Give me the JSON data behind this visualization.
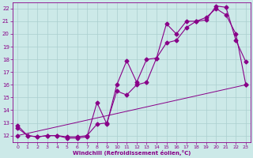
{
  "xlabel": "Windchill (Refroidissement éolien,°C)",
  "bg_color": "#cce9e8",
  "line_color": "#880088",
  "grid_color": "#aacfcf",
  "xlim": [
    -0.5,
    23.5
  ],
  "ylim": [
    11.5,
    22.5
  ],
  "xticks": [
    0,
    1,
    2,
    3,
    4,
    5,
    6,
    7,
    8,
    9,
    10,
    11,
    12,
    13,
    14,
    15,
    16,
    17,
    18,
    19,
    20,
    21,
    22,
    23
  ],
  "yticks": [
    12,
    13,
    14,
    15,
    16,
    17,
    18,
    19,
    20,
    21,
    22
  ],
  "line1_x": [
    0,
    1,
    2,
    3,
    4,
    5,
    6,
    7,
    8,
    9,
    10,
    11,
    12,
    13,
    14,
    15,
    16,
    17,
    18,
    19,
    20,
    21,
    22,
    23
  ],
  "line1_y": [
    12.8,
    12.0,
    11.9,
    12.0,
    12.0,
    11.8,
    11.8,
    11.9,
    14.6,
    12.9,
    16.0,
    17.9,
    16.2,
    18.0,
    18.1,
    20.8,
    20.0,
    21.0,
    21.0,
    21.1,
    22.2,
    22.1,
    19.5,
    17.8
  ],
  "line2_x": [
    0,
    1,
    2,
    3,
    4,
    5,
    6,
    7,
    8,
    9,
    10,
    11,
    12,
    13,
    14,
    15,
    16,
    17,
    18,
    19,
    20,
    21,
    22,
    23
  ],
  "line2_y": [
    12.6,
    12.0,
    11.9,
    12.0,
    12.0,
    11.9,
    11.9,
    12.0,
    12.9,
    13.0,
    15.5,
    15.2,
    16.0,
    16.2,
    18.1,
    19.3,
    19.5,
    20.5,
    21.0,
    21.3,
    22.0,
    21.5,
    20.0,
    16.0
  ],
  "line3_x": [
    0,
    23
  ],
  "line3_y": [
    12.0,
    16.0
  ],
  "marker": "D",
  "markersize": 2.5
}
